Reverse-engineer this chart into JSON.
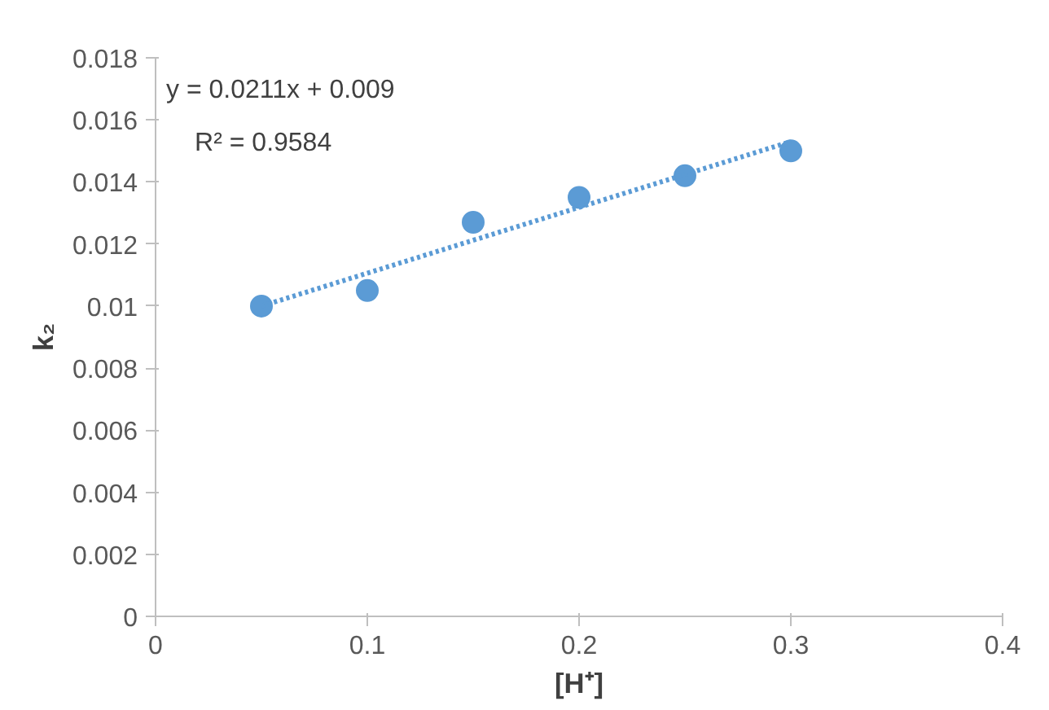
{
  "chart_data": {
    "type": "scatter",
    "xlabel": "[H⁺]",
    "ylabel": "k₂",
    "xlim": [
      0,
      0.4
    ],
    "xticks": [
      0,
      0.1,
      0.2,
      0.3,
      0.4
    ],
    "ylim": [
      0,
      0.018
    ],
    "yticks": [
      0,
      0.002,
      0.004,
      0.006,
      0.008,
      0.01,
      0.012,
      0.014,
      0.016,
      0.018
    ],
    "x": [
      0.05,
      0.1,
      0.15,
      0.2,
      0.25,
      0.3
    ],
    "series": [
      {
        "color": "#5b9bd5",
        "marker": "circle",
        "values": [
          0.01,
          0.0105,
          0.0127,
          0.0135,
          0.0142,
          0.015
        ]
      },
      {
        "type": "line",
        "color": "#5b9bd5",
        "line_style": "dotted",
        "x": [
          0.05,
          0.3
        ],
        "values": [
          0.01,
          0.0153
        ]
      }
    ],
    "annotations": [
      "y = 0.0211x + 0.009",
      "R² = 0.9584"
    ],
    "grid": false
  }
}
